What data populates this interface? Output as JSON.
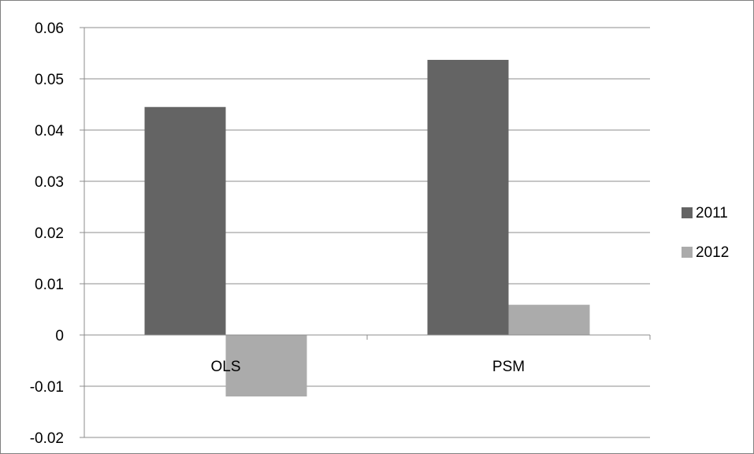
{
  "chart_data": {
    "type": "bar",
    "categories": [
      "OLS",
      "PSM"
    ],
    "series": [
      {
        "name": "2011",
        "values": [
          0.0445,
          0.0537
        ],
        "color": "#646464"
      },
      {
        "name": "2012",
        "values": [
          -0.012,
          0.0059
        ],
        "color": "#ababab"
      }
    ],
    "ylim": [
      -0.02,
      0.06
    ],
    "yticks": [
      "-0.02",
      "-0.01",
      "0",
      "0.01",
      "0.02",
      "0.03",
      "0.04",
      "0.05",
      "0.06"
    ],
    "grid": true,
    "legend_position": "right"
  }
}
